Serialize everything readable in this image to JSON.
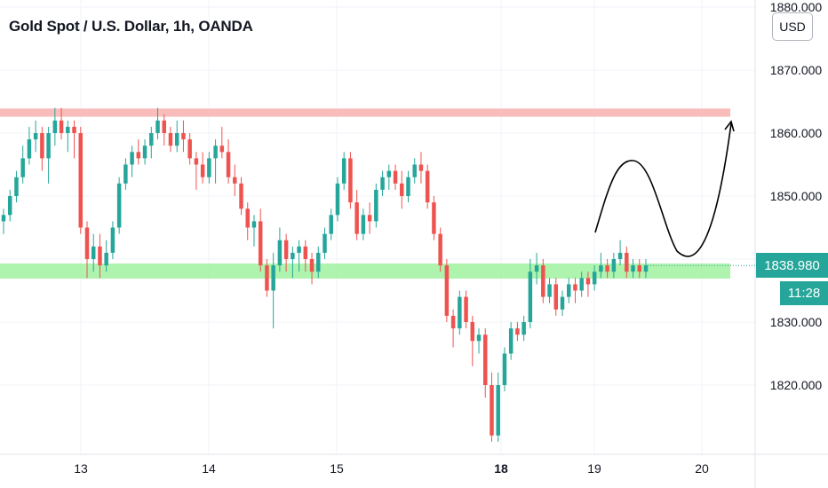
{
  "chart_data": {
    "type": "candlestick",
    "title": "Gold Spot / U.S. Dollar, 1h, OANDA",
    "currency": "USD",
    "ylim": [
      1811,
      1880
    ],
    "y_ticks": [
      "1880.000",
      "1870.000",
      "1860.000",
      "1850.000",
      "1830.000",
      "1820.000"
    ],
    "x_ticks": [
      {
        "label": "13",
        "bold": false
      },
      {
        "label": "14",
        "bold": false
      },
      {
        "label": "15",
        "bold": false
      },
      {
        "label": "18",
        "bold": true
      },
      {
        "label": "19",
        "bold": false
      },
      {
        "label": "20",
        "bold": false
      }
    ],
    "last_price": "1838.980",
    "last_price_value": 1838.98,
    "countdown": "11:28",
    "zones": [
      {
        "type": "resistance",
        "from": 1862.6,
        "to": 1863.9,
        "color": "#f7b5b3"
      },
      {
        "type": "support",
        "from": 1836.9,
        "to": 1839.3,
        "color": "#a5f2a5"
      }
    ],
    "colors": {
      "up": "#26a69a",
      "down": "#ef5350"
    },
    "candles": [
      [
        1846,
        1848,
        1844,
        1847
      ],
      [
        1847,
        1851,
        1846,
        1850
      ],
      [
        1850,
        1854,
        1849,
        1853
      ],
      [
        1853,
        1858,
        1852,
        1856
      ],
      [
        1856,
        1861,
        1855,
        1859
      ],
      [
        1859,
        1862,
        1857,
        1860
      ],
      [
        1860,
        1861,
        1854,
        1856
      ],
      [
        1856,
        1861,
        1852,
        1860
      ],
      [
        1860,
        1864,
        1858,
        1862
      ],
      [
        1862,
        1864,
        1859,
        1860
      ],
      [
        1860,
        1862,
        1857,
        1861
      ],
      [
        1861,
        1862,
        1856,
        1860
      ],
      [
        1860,
        1861,
        1844,
        1845
      ],
      [
        1845,
        1846,
        1837,
        1840
      ],
      [
        1840,
        1844,
        1838,
        1842
      ],
      [
        1842,
        1844,
        1837,
        1839
      ],
      [
        1839,
        1843,
        1838,
        1841
      ],
      [
        1841,
        1846,
        1840,
        1845
      ],
      [
        1845,
        1853,
        1844,
        1852
      ],
      [
        1852,
        1856,
        1851,
        1855
      ],
      [
        1855,
        1858,
        1853,
        1857
      ],
      [
        1857,
        1859,
        1855,
        1856
      ],
      [
        1856,
        1859,
        1855,
        1858
      ],
      [
        1858,
        1861,
        1856,
        1860
      ],
      [
        1860,
        1864,
        1859,
        1862
      ],
      [
        1862,
        1863,
        1858,
        1860
      ],
      [
        1860,
        1861,
        1857,
        1858
      ],
      [
        1858,
        1862,
        1857,
        1860
      ],
      [
        1860,
        1862,
        1857,
        1859
      ],
      [
        1859,
        1860,
        1855,
        1856
      ],
      [
        1856,
        1857,
        1851,
        1855
      ],
      [
        1855,
        1857,
        1852,
        1853
      ],
      [
        1853,
        1857,
        1852,
        1856
      ],
      [
        1856,
        1859,
        1852,
        1858
      ],
      [
        1858,
        1861,
        1856,
        1857
      ],
      [
        1857,
        1859,
        1852,
        1853
      ],
      [
        1853,
        1855,
        1850,
        1852
      ],
      [
        1852,
        1853,
        1847,
        1848
      ],
      [
        1848,
        1849,
        1843,
        1845
      ],
      [
        1845,
        1847,
        1842,
        1846
      ],
      [
        1846,
        1848,
        1838,
        1839
      ],
      [
        1839,
        1840,
        1834,
        1835
      ],
      [
        1835,
        1841,
        1829,
        1839
      ],
      [
        1839,
        1845,
        1838,
        1843
      ],
      [
        1843,
        1844,
        1838,
        1840
      ],
      [
        1840,
        1842,
        1837,
        1841
      ],
      [
        1841,
        1843,
        1838,
        1842
      ],
      [
        1842,
        1843,
        1838,
        1840
      ],
      [
        1840,
        1841,
        1836,
        1838
      ],
      [
        1838,
        1842,
        1837,
        1841
      ],
      [
        1841,
        1845,
        1840,
        1844
      ],
      [
        1844,
        1848,
        1843,
        1847
      ],
      [
        1847,
        1853,
        1846,
        1852
      ],
      [
        1852,
        1857,
        1851,
        1856
      ],
      [
        1856,
        1857,
        1848,
        1849
      ],
      [
        1849,
        1851,
        1843,
        1844
      ],
      [
        1844,
        1848,
        1843,
        1847
      ],
      [
        1847,
        1849,
        1844,
        1846
      ],
      [
        1846,
        1852,
        1845,
        1851
      ],
      [
        1851,
        1854,
        1850,
        1853
      ],
      [
        1853,
        1855,
        1851,
        1854
      ],
      [
        1854,
        1855,
        1851,
        1852
      ],
      [
        1852,
        1854,
        1848,
        1850
      ],
      [
        1850,
        1854,
        1849,
        1853
      ],
      [
        1853,
        1856,
        1852,
        1855
      ],
      [
        1855,
        1857,
        1852,
        1854
      ],
      [
        1854,
        1855,
        1848,
        1849
      ],
      [
        1849,
        1850,
        1843,
        1844
      ],
      [
        1844,
        1845,
        1838,
        1839
      ],
      [
        1839,
        1840,
        1830,
        1831
      ],
      [
        1831,
        1832,
        1826,
        1829
      ],
      [
        1829,
        1835,
        1828,
        1834
      ],
      [
        1834,
        1835,
        1829,
        1830
      ],
      [
        1830,
        1831,
        1823,
        1827
      ],
      [
        1827,
        1829,
        1825,
        1828
      ],
      [
        1828,
        1829,
        1818,
        1820
      ],
      [
        1820,
        1822,
        1811,
        1812
      ],
      [
        1812,
        1822,
        1811,
        1820
      ],
      [
        1820,
        1826,
        1819,
        1825
      ],
      [
        1825,
        1830,
        1824,
        1829
      ],
      [
        1829,
        1830,
        1827,
        1828
      ],
      [
        1828,
        1831,
        1827,
        1830
      ],
      [
        1830,
        1840,
        1829,
        1838
      ],
      [
        1838,
        1841,
        1836,
        1839
      ],
      [
        1839,
        1840,
        1833,
        1834
      ],
      [
        1834,
        1837,
        1833,
        1836
      ],
      [
        1836,
        1837,
        1831,
        1832
      ],
      [
        1832,
        1835,
        1831,
        1834
      ],
      [
        1834,
        1837,
        1833,
        1836
      ],
      [
        1836,
        1837,
        1833,
        1835
      ],
      [
        1835,
        1838,
        1834,
        1837
      ],
      [
        1837,
        1838,
        1834,
        1836
      ],
      [
        1836,
        1839,
        1835,
        1838
      ],
      [
        1838,
        1841,
        1837,
        1839
      ],
      [
        1839,
        1840,
        1837,
        1838
      ],
      [
        1838,
        1841,
        1837,
        1840
      ],
      [
        1840,
        1843,
        1839,
        1841
      ],
      [
        1841,
        1842,
        1837,
        1838
      ],
      [
        1838,
        1840,
        1837,
        1839
      ],
      [
        1839,
        1840,
        1837,
        1838
      ],
      [
        1838,
        1840,
        1837,
        1839
      ]
    ],
    "projection": {
      "type": "arrow-path",
      "direction": "up",
      "target_zone": "resistance"
    }
  }
}
